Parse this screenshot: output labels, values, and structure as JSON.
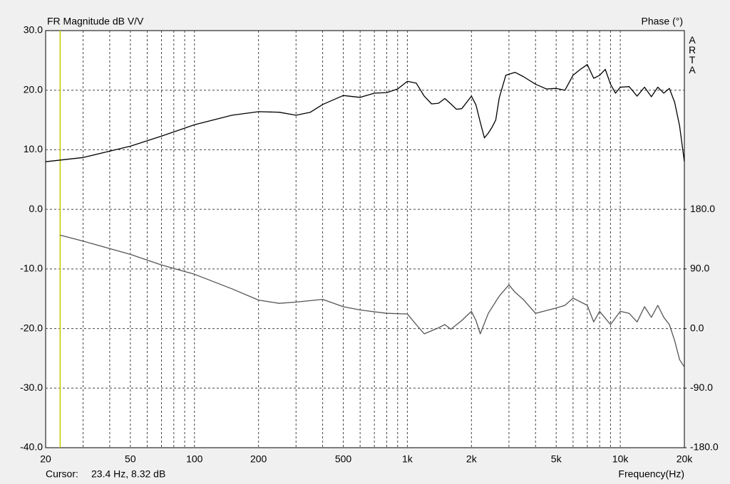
{
  "chart_data": {
    "type": "line",
    "title": "FR Magnitude dB V/V",
    "y2_label": "Phase (°)",
    "x_label": "Frequency(Hz)",
    "brand": "ARTA",
    "cursor_label": "Cursor:",
    "cursor_text": "23.4 Hz, 8.32 dB",
    "cursor_x": 23.4,
    "cursor_color": "#c8c800",
    "xscale": "log",
    "grid": true,
    "xlim": [
      20,
      20000
    ],
    "ylim": [
      -40,
      30
    ],
    "y2lim": [
      -180,
      450
    ],
    "xticks": [
      20,
      50,
      100,
      200,
      500,
      {
        "value": 1000,
        "label": "1k"
      },
      {
        "value": 2000,
        "label": "2k"
      },
      {
        "value": 5000,
        "label": "5k"
      },
      {
        "value": 10000,
        "label": "10k"
      },
      {
        "value": 20000,
        "label": "20k"
      }
    ],
    "xgrid": [
      30,
      40,
      60,
      70,
      80,
      90,
      300,
      400,
      600,
      700,
      800,
      900,
      3000,
      4000,
      6000,
      7000,
      8000,
      9000
    ],
    "yticks": [
      {
        "value": 30,
        "label": "30.0"
      },
      {
        "value": 20,
        "label": "20.0"
      },
      {
        "value": 10,
        "label": "10.0"
      },
      {
        "value": 0,
        "label": "0.0"
      },
      {
        "value": -10,
        "label": "-10.0"
      },
      {
        "value": -20,
        "label": "-20.0"
      },
      {
        "value": -30,
        "label": "-30.0"
      },
      {
        "value": -40,
        "label": "-40.0"
      }
    ],
    "y2ticks": [
      {
        "value": 180,
        "label": "180.0"
      },
      {
        "value": 90,
        "label": "90.0"
      },
      {
        "value": 0,
        "label": "0.0"
      },
      {
        "value": -90,
        "label": "-90.0"
      },
      {
        "value": -180,
        "label": "-180.0"
      }
    ],
    "series": [
      {
        "name": "Magnitude",
        "color": "#000000",
        "axis": "y",
        "x": [
          20,
          30,
          50,
          70,
          100,
          150,
          200,
          250,
          300,
          350,
          400,
          500,
          600,
          700,
          800,
          900,
          1000,
          1100,
          1200,
          1300,
          1400,
          1500,
          1600,
          1700,
          1800,
          2000,
          2100,
          2200,
          2300,
          2400,
          2500,
          2600,
          2700,
          2900,
          3200,
          3500,
          4000,
          4500,
          5000,
          5500,
          6000,
          6500,
          7000,
          7500,
          8000,
          8500,
          9000,
          9500,
          10000,
          11000,
          12000,
          13000,
          14000,
          15000,
          16000,
          17000,
          18000,
          19000,
          20000
        ],
        "values": [
          8.0,
          8.7,
          10.6,
          12.3,
          14.2,
          15.8,
          16.4,
          16.3,
          15.8,
          16.3,
          17.6,
          19.1,
          18.8,
          19.5,
          19.6,
          20.2,
          21.5,
          21.2,
          19.0,
          17.7,
          17.8,
          18.6,
          17.7,
          16.8,
          16.9,
          19.0,
          17.5,
          14.6,
          12.0,
          12.8,
          13.8,
          15.0,
          18.7,
          22.5,
          23.0,
          22.3,
          21.0,
          20.2,
          20.3,
          20.0,
          22.5,
          23.5,
          24.3,
          22.0,
          22.5,
          23.5,
          21.0,
          19.5,
          20.5,
          20.6,
          19.0,
          20.5,
          18.9,
          20.5,
          19.5,
          20.3,
          18.0,
          14.0,
          8.0
        ]
      },
      {
        "name": "Phase",
        "color": "#555555",
        "axis": "y2",
        "x": [
          23.4,
          30,
          50,
          70,
          100,
          150,
          200,
          250,
          300,
          400,
          500,
          600,
          800,
          1000,
          1100,
          1200,
          1400,
          1500,
          1600,
          1800,
          2000,
          2100,
          2200,
          2400,
          2700,
          3000,
          3200,
          3500,
          4000,
          5000,
          5500,
          6000,
          7000,
          7500,
          8000,
          9000,
          10000,
          11000,
          12000,
          13000,
          14000,
          15000,
          16000,
          17000,
          18000,
          19000,
          20000
        ],
        "values": [
          141,
          132,
          112,
          96,
          82,
          60,
          43,
          38,
          40,
          44,
          33,
          28,
          23,
          22,
          6,
          -8,
          1,
          6,
          -1,
          12,
          26,
          12,
          -8,
          23,
          49,
          66,
          55,
          44,
          23,
          31,
          35,
          46,
          35,
          10,
          26,
          6,
          26,
          23,
          10,
          33,
          17,
          35,
          17,
          6,
          -18,
          -47,
          -58
        ]
      }
    ]
  }
}
